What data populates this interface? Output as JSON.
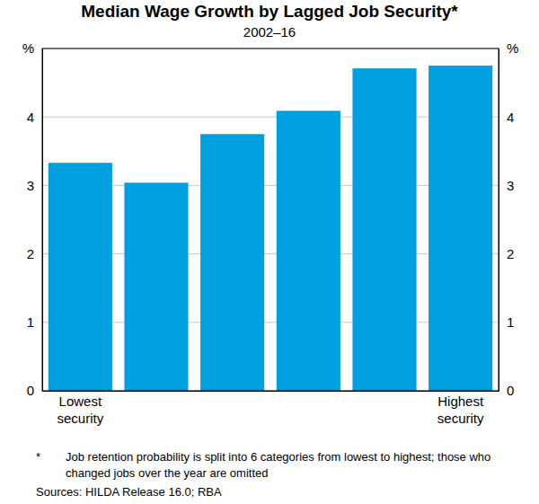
{
  "chart_data": {
    "type": "bar",
    "title": "Median Wage Growth by Lagged Job Security*",
    "subtitle": "2002–16",
    "categories": [
      "Lowest security",
      null,
      null,
      null,
      null,
      "Highest security"
    ],
    "values": [
      3.33,
      3.04,
      3.75,
      4.09,
      4.71,
      4.75
    ],
    "color": "#009FDF",
    "ylim": [
      0,
      5
    ],
    "yticks": [
      0,
      1,
      2,
      3,
      4,
      {
        "value": 5,
        "label": "%"
      }
    ],
    "grid": true,
    "footnote_marker": "*",
    "footnote": "Job retention probability is split into 6 categories from lowest to highest; those who changed jobs over the year are omitted",
    "sources": "Sources: HILDA Release 16.0; RBA"
  }
}
